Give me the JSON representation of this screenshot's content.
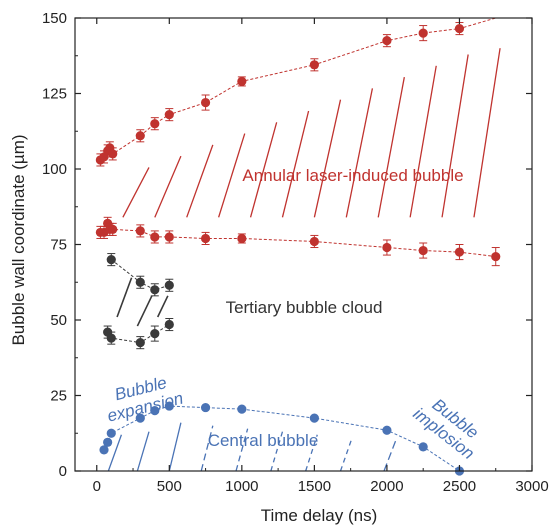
{
  "chart_data": {
    "type": "scatter",
    "title": "",
    "xlabel": "Time delay (ns)",
    "ylabel": "Bubble wall coordinate (µm)",
    "xlim": [
      -150,
      3000
    ],
    "ylim": [
      0,
      150
    ],
    "x_ticks": [
      0,
      500,
      1000,
      1500,
      2000,
      2500,
      3000
    ],
    "y_ticks": [
      0,
      25,
      50,
      75,
      100,
      125,
      150
    ],
    "x_tick_labels": [
      "0",
      "500",
      "1000",
      "1500",
      "2000",
      "2500",
      "3000"
    ],
    "y_tick_labels": [
      "0",
      "25",
      "50",
      "75",
      "100",
      "125",
      "150"
    ],
    "grid": false,
    "series": [
      {
        "group": "annular-outer",
        "color": "#c0332f",
        "points": [
          [
            25,
            103,
            2
          ],
          [
            50,
            104,
            2
          ],
          [
            75,
            106,
            2
          ],
          [
            90,
            107,
            2
          ],
          [
            110,
            105,
            2
          ],
          [
            300,
            111,
            2
          ],
          [
            400,
            115,
            2
          ],
          [
            500,
            118,
            2
          ],
          [
            750,
            122,
            2.5
          ],
          [
            1000,
            129,
            1.5
          ],
          [
            1500,
            134.5,
            2
          ],
          [
            2000,
            142.5,
            2
          ],
          [
            2250,
            145,
            2.5
          ],
          [
            2500,
            146.5,
            2
          ]
        ],
        "line_extends_to": [
          2750,
          151
        ]
      },
      {
        "group": "annular-inner",
        "color": "#c0332f",
        "points": [
          [
            25,
            79,
            2
          ],
          [
            50,
            79,
            2
          ],
          [
            75,
            82,
            2
          ],
          [
            90,
            80,
            2
          ],
          [
            110,
            80,
            2
          ],
          [
            300,
            79.5,
            2
          ],
          [
            400,
            77.5,
            2
          ],
          [
            500,
            77.5,
            2
          ],
          [
            750,
            77,
            2
          ],
          [
            1000,
            77,
            1.5
          ],
          [
            1500,
            76,
            2
          ],
          [
            2000,
            74,
            2.5
          ],
          [
            2250,
            73,
            2.5
          ],
          [
            2500,
            72.5,
            2.5
          ],
          [
            2750,
            71,
            3
          ]
        ]
      },
      {
        "group": "tertiary-outer",
        "color": "#3a3a3a",
        "points": [
          [
            100,
            70,
            2
          ],
          [
            300,
            62.5,
            2
          ],
          [
            400,
            60,
            2
          ],
          [
            500,
            61.5,
            2
          ]
        ]
      },
      {
        "group": "tertiary-inner",
        "color": "#3a3a3a",
        "points": [
          [
            75,
            46,
            2
          ],
          [
            100,
            44,
            2
          ],
          [
            300,
            42.5,
            2
          ],
          [
            400,
            45.5,
            2.5
          ],
          [
            500,
            48.5,
            2
          ]
        ]
      },
      {
        "group": "central",
        "color": "#4a73b5",
        "points": [
          [
            50,
            7
          ],
          [
            75,
            9.5
          ],
          [
            100,
            12.5
          ],
          [
            300,
            17.5
          ],
          [
            400,
            20
          ],
          [
            500,
            21.5
          ],
          [
            750,
            21
          ],
          [
            1000,
            20.5
          ],
          [
            1500,
            17.5
          ],
          [
            2000,
            13.5
          ],
          [
            2250,
            8
          ],
          [
            2500,
            0
          ]
        ]
      }
    ],
    "annotations": [
      {
        "text": "Annular laser-induced bubble",
        "color": "#c0332f"
      },
      {
        "text": "Tertiary bubble cloud",
        "color": "#333333"
      },
      {
        "text": "Central bubble",
        "color": "#4a73b5"
      },
      {
        "text": "Bubble",
        "color": "#4a73b5"
      },
      {
        "text": "expansion",
        "color": "#4a73b5"
      },
      {
        "text": "Bubble",
        "color": "#4a73b5"
      },
      {
        "text": "implosion",
        "color": "#4a73b5"
      }
    ]
  }
}
